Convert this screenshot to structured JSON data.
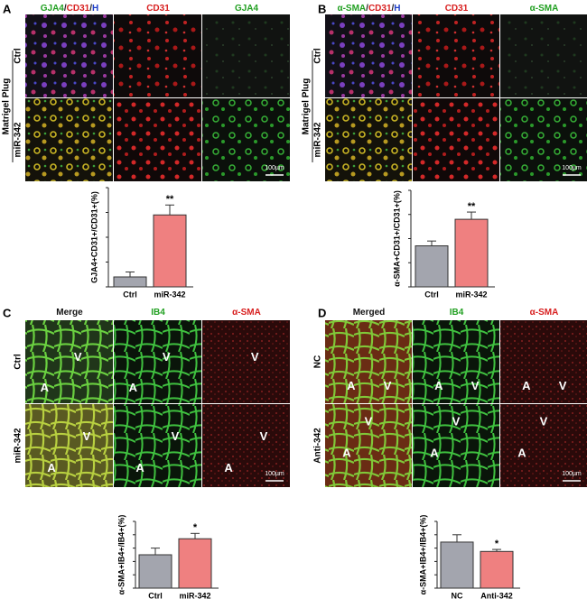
{
  "panels": [
    {
      "letter": "A",
      "group": "Matrigel Plug",
      "rows": [
        "Ctrl",
        "miR-342"
      ],
      "scale_bar": "100µm",
      "columns": [
        [
          {
            "text": "GJA4",
            "color": "#22a022"
          },
          {
            "text": "/",
            "color": "#222222"
          },
          {
            "text": "CD31",
            "color": "#d82020"
          },
          {
            "text": "/",
            "color": "#222222"
          },
          {
            "text": "H",
            "color": "#2040c8"
          }
        ],
        [
          {
            "text": "CD31",
            "color": "#d82020"
          }
        ],
        [
          {
            "text": "GJA4",
            "color": "#22a022"
          }
        ]
      ]
    },
    {
      "letter": "B",
      "group": "Matrigel Plug",
      "rows": [
        "Ctrl",
        "miR-342"
      ],
      "scale_bar": "100µm",
      "columns": [
        [
          {
            "text": "α-SMA",
            "color": "#22a022"
          },
          {
            "text": "/",
            "color": "#222222"
          },
          {
            "text": "CD31",
            "color": "#d82020"
          },
          {
            "text": "/",
            "color": "#222222"
          },
          {
            "text": "H",
            "color": "#2040c8"
          }
        ],
        [
          {
            "text": "CD31",
            "color": "#d82020"
          }
        ],
        [
          {
            "text": "α-SMA",
            "color": "#22a022"
          }
        ]
      ]
    },
    {
      "letter": "C",
      "rows": [
        "Ctrl",
        "miR-342"
      ],
      "scale_bar": "100µm",
      "columns": [
        [
          {
            "text": "Merge",
            "color": "#111111"
          }
        ],
        [
          {
            "text": "IB4",
            "color": "#22a022"
          }
        ],
        [
          {
            "text": "α-SMA",
            "color": "#d82020"
          }
        ]
      ],
      "vessels": [
        [
          [
            "V",
            "A"
          ],
          [
            "V",
            "A"
          ],
          [
            "V"
          ]
        ],
        [
          [
            "V",
            "A"
          ],
          [
            "V",
            "A"
          ],
          [
            "V",
            "A"
          ]
        ]
      ]
    },
    {
      "letter": "D",
      "rows": [
        "NC",
        "Anti-342"
      ],
      "scale_bar": "100µm",
      "columns": [
        [
          {
            "text": "Merged",
            "color": "#111111"
          }
        ],
        [
          {
            "text": "IB4",
            "color": "#22a022"
          }
        ],
        [
          {
            "text": "α-SMA",
            "color": "#d82020"
          }
        ]
      ],
      "vessels": [
        [
          [
            "A",
            "V"
          ],
          [
            "A",
            "V"
          ],
          [
            "A",
            "V"
          ]
        ],
        [
          [
            "V",
            "A"
          ],
          [
            "V",
            "A"
          ],
          [
            "V",
            "A"
          ]
        ]
      ]
    }
  ],
  "chart_data": [
    {
      "type": "bar",
      "y_label": "GJA4+CD31+/CD31+(%)",
      "categories": [
        "Ctrl",
        "miR-342"
      ],
      "values": [
        2,
        14.5
      ],
      "errors": [
        1,
        2
      ],
      "colors": [
        "#a3a5ae",
        "#ef8080"
      ],
      "annotation": "**",
      "ylim": [
        0,
        20
      ],
      "yticks": [
        0,
        5,
        10,
        15,
        20
      ]
    },
    {
      "type": "bar",
      "y_label": "α-SMA+CD31+/CD31+(%)",
      "categories": [
        "Ctrl",
        "miR-342"
      ],
      "values": [
        8.5,
        14
      ],
      "errors": [
        1,
        1.5
      ],
      "colors": [
        "#a3a5ae",
        "#ef8080"
      ],
      "annotation": "**",
      "ylim": [
        0,
        20
      ],
      "yticks": [
        0,
        5,
        10,
        15,
        20
      ]
    },
    {
      "type": "bar",
      "y_label": "α-SMA+IB4+/IB4+(%)",
      "categories": [
        "Ctrl",
        "miR-342"
      ],
      "values": [
        2.5,
        3.7
      ],
      "errors": [
        0.5,
        0.4
      ],
      "colors": [
        "#a3a5ae",
        "#ef8080"
      ],
      "annotation": "*",
      "ylim": [
        0,
        5
      ],
      "yticks": [
        0,
        1,
        2,
        3,
        4,
        5
      ]
    },
    {
      "type": "bar",
      "y_label": "α-SMA+IB4+/IB4+(%)",
      "categories": [
        "NC",
        "Anti-342"
      ],
      "values": [
        3.45,
        2.75
      ],
      "errors": [
        0.55,
        0.15
      ],
      "colors": [
        "#a3a5ae",
        "#ef8080"
      ],
      "annotation": "*",
      "ylim": [
        0,
        5
      ],
      "yticks": [
        0,
        1,
        2,
        3,
        4,
        5
      ]
    }
  ]
}
